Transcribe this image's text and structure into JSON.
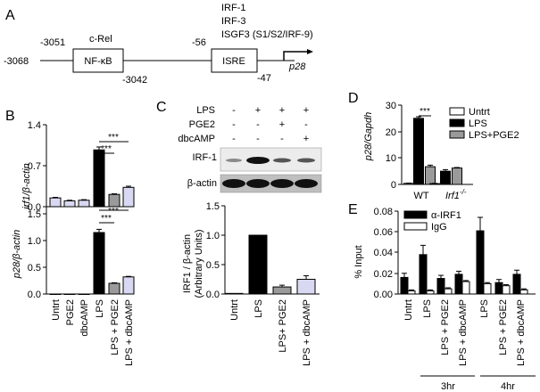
{
  "panels": {
    "A": {
      "letter": "A",
      "c_rel": "c-Rel",
      "irf1": "IRF-1",
      "irf3": "IRF-3",
      "isgf3": "ISGF3 (S1/S2/IRF-9)",
      "nfkb_box": "NF-κB",
      "isre_box": "ISRE",
      "pos_start": "-3068",
      "pos_nfkb_left": "-3051",
      "pos_nfkb_right": "-3042",
      "pos_isre_left": "-56",
      "pos_isre_right": "-47",
      "gene": "p28"
    },
    "B": {
      "letter": "B",
      "ticks_top": [
        "1.4",
        "0.7",
        "0.0"
      ],
      "ticks_bottom": [
        "1.5",
        "1.0",
        "0.5",
        "0.0"
      ],
      "sig": "***",
      "categories": [
        "Untrt",
        "PGE2",
        "dbcAMP",
        "LPS",
        "LPS + PGE2",
        "LPS + dbcAMP"
      ]
    },
    "C": {
      "letter": "C",
      "blot_rows": [
        "LPS",
        "PGE2",
        "dbcAMP"
      ],
      "blot_signs": [
        [
          "-",
          "+",
          "+",
          "+"
        ],
        [
          "-",
          "-",
          "+",
          "-"
        ],
        [
          "-",
          "-",
          "-",
          "+"
        ]
      ],
      "band_irf1": "IRF-1",
      "band_actin": "β-actin",
      "ticks": [
        "1.5",
        "1.0",
        "0.5",
        "0.0"
      ],
      "categories": [
        "Untrt",
        "LPS",
        "LPS+ PGE2",
        "LPS + dbcAMP"
      ]
    },
    "D": {
      "letter": "D",
      "ticks": [
        "30",
        "20",
        "10",
        "0"
      ],
      "sig": "***",
      "legend": [
        "Untrt",
        "LPS",
        "LPS+PGE2"
      ],
      "groups": [
        "WT",
        "Irf1"
      ],
      "group_superscript": "-/-"
    },
    "E": {
      "letter": "E",
      "ticks": [
        "0.08",
        "0.06",
        "0.04",
        "0.02",
        "0.00"
      ],
      "legend": [
        "α-IRF1",
        "IgG"
      ],
      "categories": [
        "Untrt",
        "LPS",
        "LPS + PGE2",
        "LPS + dbcAMP",
        "LPS",
        "LPS + PGE2",
        "LPS + dbcAMP"
      ],
      "time_labels": [
        "3hr",
        "4hr"
      ]
    }
  },
  "colors": {
    "black": "#000000",
    "grey": "#9a9a9a",
    "lavender": "#d8d8f2",
    "white": "#ffffff"
  },
  "chart_data": [
    {
      "panel": "B-top",
      "type": "bar",
      "ylabel": "irf1/β-actin",
      "ylim": [
        0,
        1.4
      ],
      "categories": [
        "Untrt",
        "PGE2",
        "dbcAMP",
        "LPS",
        "LPS + PGE2",
        "LPS + dbcAMP"
      ],
      "values": [
        0.15,
        0.1,
        0.11,
        0.97,
        0.21,
        0.33
      ],
      "errors": [
        0.01,
        0.01,
        0.01,
        0.05,
        0.01,
        0.02
      ],
      "colors": [
        "lavender",
        "lavender",
        "lavender",
        "black",
        "grey",
        "lavender"
      ]
    },
    {
      "panel": "B-bottom",
      "type": "bar",
      "ylabel": "p28/β-actin",
      "ylim": [
        0,
        1.5
      ],
      "categories": [
        "Untrt",
        "PGE2",
        "dbcAMP",
        "LPS",
        "LPS + PGE2",
        "LPS + dbcAMP"
      ],
      "values": [
        0.0,
        0.0,
        0.0,
        1.15,
        0.2,
        0.32
      ],
      "errors": [
        0,
        0,
        0,
        0.06,
        0.01,
        0.01
      ],
      "colors": [
        "lavender",
        "lavender",
        "lavender",
        "black",
        "grey",
        "lavender"
      ]
    },
    {
      "panel": "C",
      "type": "bar",
      "ylabel": "IRF1 / β-actin",
      "ylabel2": "(Arbitrary Units)",
      "ylim": [
        0,
        1.5
      ],
      "categories": [
        "Untrt",
        "LPS",
        "LPS+ PGE2",
        "LPS + dbcAMP"
      ],
      "values": [
        0.01,
        1.0,
        0.12,
        0.25
      ],
      "errors": [
        0,
        0,
        0.03,
        0.06
      ],
      "colors": [
        "white",
        "black",
        "grey",
        "lavender"
      ]
    },
    {
      "panel": "D",
      "type": "bar",
      "ylabel": "p28/Gapdh",
      "ylim": [
        0,
        30
      ],
      "groups": [
        "WT",
        "Irf1-/-"
      ],
      "series": [
        {
          "name": "Untrt",
          "values": [
            0.4,
            0.3
          ],
          "errors": [
            0.1,
            0.1
          ],
          "color": "white"
        },
        {
          "name": "LPS",
          "values": [
            25.0,
            5.0
          ],
          "errors": [
            0.6,
            0.6
          ],
          "color": "black"
        },
        {
          "name": "LPS+PGE2",
          "values": [
            6.7,
            6.2
          ],
          "errors": [
            0.6,
            0.2
          ],
          "color": "grey"
        }
      ]
    },
    {
      "panel": "E",
      "type": "bar",
      "ylabel": "% Input",
      "ylim": [
        0,
        0.08
      ],
      "categories": [
        "Untrt",
        "LPS",
        "LPS + PGE2",
        "LPS + dbcAMP",
        "LPS",
        "LPS + PGE2",
        "LPS + dbcAMP"
      ],
      "series": [
        {
          "name": "α-IRF1",
          "values": [
            0.016,
            0.038,
            0.015,
            0.019,
            0.061,
            0.011,
            0.019
          ],
          "errors": [
            0.004,
            0.009,
            0.003,
            0.003,
            0.013,
            0.003,
            0.004
          ],
          "color": "black"
        },
        {
          "name": "IgG",
          "values": [
            0.003,
            0.003,
            0.005,
            0.012,
            0.01,
            0.008,
            0.004
          ],
          "errors": [
            0.001,
            0.001,
            0.001,
            0.001,
            0.001,
            0.001,
            0.001
          ],
          "color": "white"
        }
      ]
    }
  ]
}
